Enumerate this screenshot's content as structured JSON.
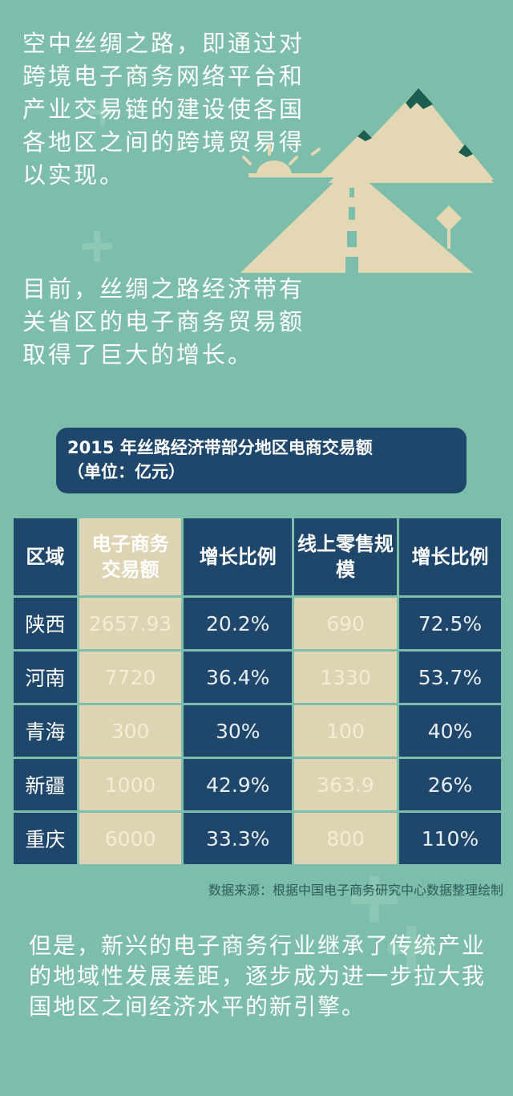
{
  "intro": {
    "paragraph1": "空中丝绸之路，即通过对跨境电子商务网络平台和产业交易链的建设使各国各地区之间的跨境贸易得以实现。",
    "paragraph2": "目前，丝绸之路经济带有关省区的电子商务贸易额取得了巨大的增长。"
  },
  "chart_title": {
    "line1": "2015 年丝路经济带部分地区电商交易额",
    "line2": "（单位：亿元）"
  },
  "chart_data": {
    "type": "table",
    "columns": [
      "区域",
      "电子商务交易额",
      "增长比例",
      "线上零售规模",
      "增长比例"
    ],
    "rows": [
      [
        "陕西",
        "2657.93",
        "20.2%",
        "690",
        "72.5%"
      ],
      [
        "河南",
        "7720",
        "36.4%",
        "1330",
        "53.7%"
      ],
      [
        "青海",
        "300",
        "30%",
        "100",
        "40%"
      ],
      [
        "新疆",
        "1000",
        "42.9%",
        "363.9",
        "26%"
      ],
      [
        "重庆",
        "6000",
        "33.3%",
        "800",
        "110%"
      ]
    ]
  },
  "source": "数据来源：根据中国电子商务研究中心数据整理绘制",
  "closing": "但是，新兴的电子商务行业继承了传统产业的地域性发展差距，逐步成为进一步拉大我国地区之间经济水平的新引擎。",
  "colors": {
    "background": "#7cbdab",
    "navy": "#1f476b",
    "beige": "#ded4b4",
    "mountain": "#e3d8b3",
    "snowcap": "#1b5e4f"
  },
  "icons": [
    "mountain-road-illustration",
    "plus-icon"
  ]
}
